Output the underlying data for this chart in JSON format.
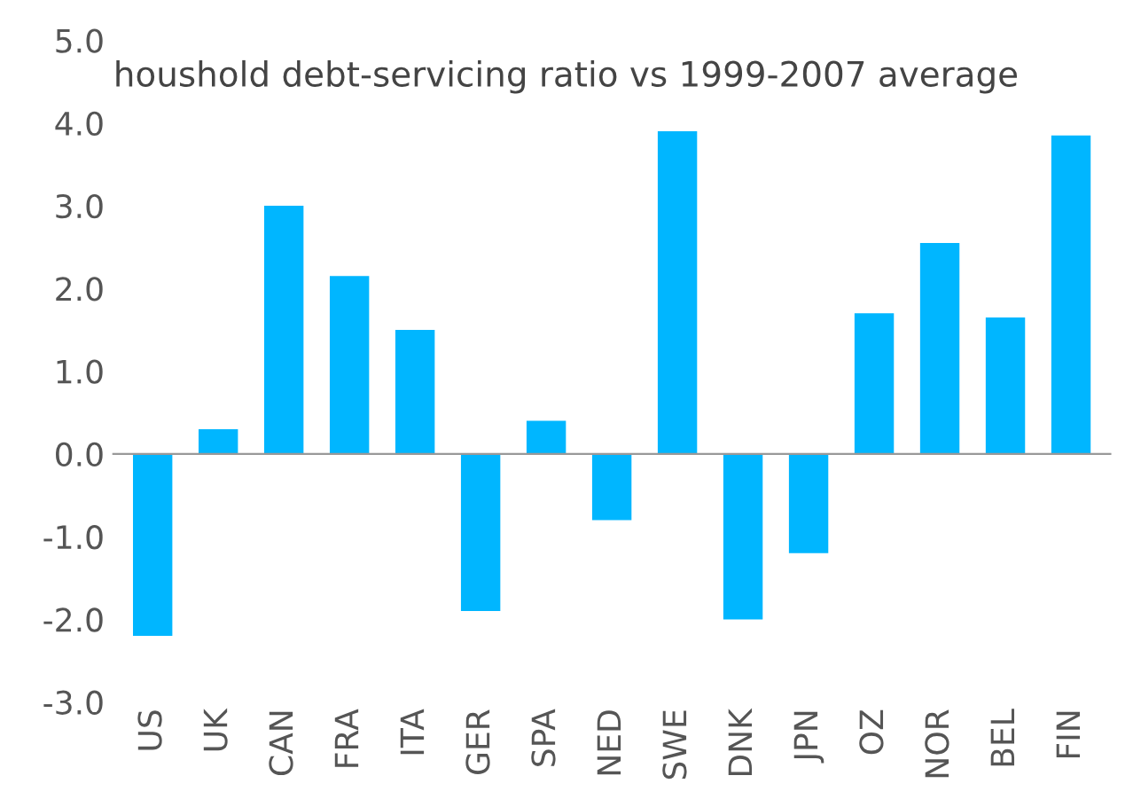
{
  "chart_data": {
    "type": "bar",
    "title": "houshold debt-servicing ratio vs 1999-2007 average",
    "categories": [
      "US",
      "UK",
      "CAN",
      "FRA",
      "ITA",
      "GER",
      "SPA",
      "NED",
      "SWE",
      "DNK",
      "JPN",
      "OZ",
      "NOR",
      "BEL",
      "FIN"
    ],
    "values": [
      -2.2,
      0.3,
      3.0,
      2.15,
      1.5,
      -1.9,
      0.4,
      -0.8,
      3.9,
      -2.0,
      -1.2,
      1.7,
      2.55,
      1.65,
      3.85
    ],
    "color": "#00b6ff",
    "ylim": [
      -3.0,
      5.0
    ],
    "yticks": [
      {
        "value": -3,
        "label": "-3.0"
      },
      {
        "value": -2,
        "label": "-2.0"
      },
      {
        "value": -1,
        "label": "-1.0"
      },
      {
        "value": 0,
        "label": "0.0"
      },
      {
        "value": 1,
        "label": "1.0"
      },
      {
        "value": 2,
        "label": "2.0"
      },
      {
        "value": 3,
        "label": "3.0"
      },
      {
        "value": 4,
        "label": "4.0"
      },
      {
        "value": 5,
        "label": "5.0"
      }
    ]
  }
}
